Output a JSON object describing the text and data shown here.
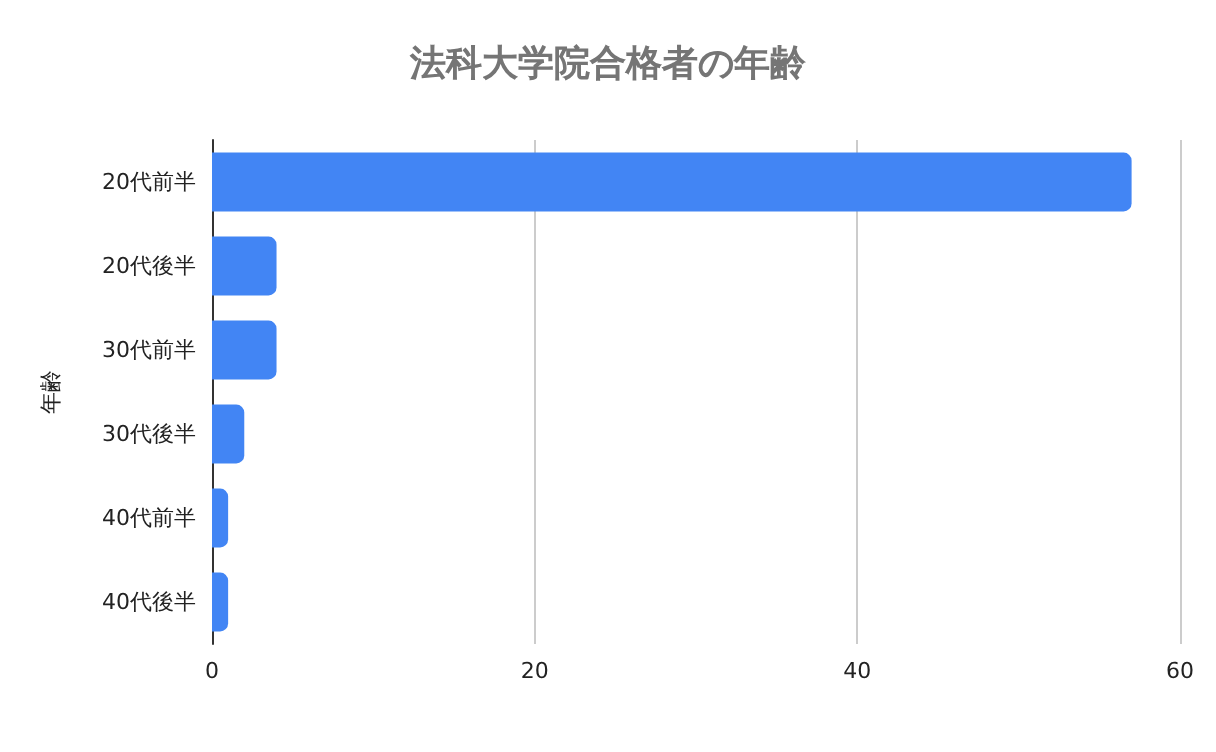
{
  "chart_data": {
    "type": "bar",
    "orientation": "horizontal",
    "title": "法科大学院合格者の年齢",
    "ylabel": "年齢",
    "categories": [
      "20代前半",
      "20代後半",
      "30代前半",
      "30代後半",
      "40代前半",
      "40代後半"
    ],
    "series": [
      {
        "color": "#4285f4",
        "values": [
          57,
          4,
          4,
          2,
          1,
          1
        ]
      }
    ],
    "xlim": [
      0,
      60
    ],
    "xticks": [
      0,
      20,
      40,
      60
    ],
    "grid": "x"
  }
}
